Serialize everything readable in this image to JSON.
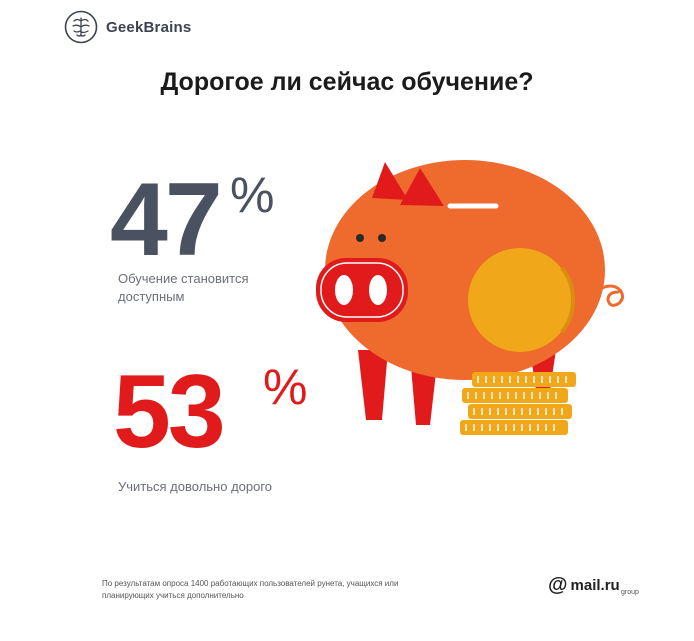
{
  "brand": {
    "name": "GeekBrains",
    "icon": "brain-icon"
  },
  "headline": "Дорогое ли сейчас обучение?",
  "stats": [
    {
      "value": "47",
      "unit": "%",
      "label": "Обучение становится доступным",
      "color": "#4a5160"
    },
    {
      "value": "53",
      "unit": "%",
      "label": "Учиться довольно дорого",
      "color": "#e11b1b"
    }
  ],
  "illustration": {
    "icon": "piggy-bank-icon",
    "colors": {
      "body": "#ee6a2d",
      "ears": "#e11b1b",
      "coin": "#f0a81a"
    }
  },
  "footnote": "По результатам опроса 1400 работающих пользователей рунета, учащихся или планирующих учиться дополнительно",
  "partner": {
    "at": "@",
    "name": "mail.ru",
    "sub": "group"
  }
}
